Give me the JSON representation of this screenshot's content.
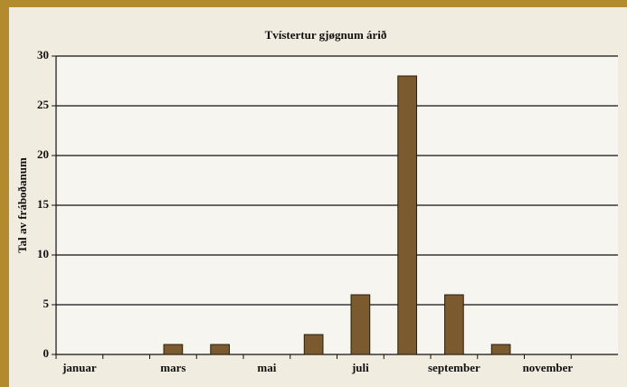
{
  "chart_data": {
    "type": "bar",
    "title": "Tvístertur gjøgnum árið",
    "y_label": "Tal av fráboðanum",
    "categories": [
      "januar",
      null,
      "mars",
      null,
      "mai",
      null,
      "juli",
      null,
      "september",
      null,
      "november",
      null
    ],
    "values": [
      0,
      0,
      1,
      1,
      0,
      2,
      6,
      28,
      6,
      1,
      0,
      0
    ],
    "color": "#7a5a2e",
    "ylim": [
      0,
      30
    ],
    "yticks": [
      0,
      5,
      10,
      15,
      20,
      25,
      30
    ],
    "grid": true
  }
}
